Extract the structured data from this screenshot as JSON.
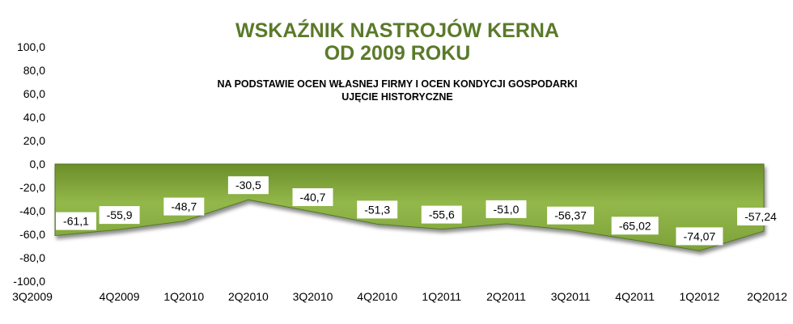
{
  "chart_data": {
    "type": "area",
    "title": [
      "WSKAŹNIK NASTROJÓW KERNA",
      "OD 2009 ROKU"
    ],
    "subtitle": [
      "NA PODSTAWIE OCEN WŁASNEJ FIRMY I OCEN KONDYCJI GOSPODARKI",
      "UJĘCIE HISTORYCZNE"
    ],
    "categories": [
      "3Q2009",
      "4Q2009",
      "1Q2010",
      "2Q2010",
      "3Q2010",
      "4Q2010",
      "1Q2011",
      "2Q2011",
      "3Q2011",
      "4Q2011",
      "1Q2012",
      "2Q2012"
    ],
    "values": [
      -61.1,
      -55.9,
      -48.7,
      -30.5,
      -40.7,
      -51.3,
      -55.6,
      -51.0,
      -56.37,
      -65.02,
      -74.07,
      -57.24
    ],
    "data_labels": [
      "-61,1",
      "-55,9",
      "-48,7",
      "-30,5",
      "-40,7",
      "-51,3",
      "-55,6",
      "-51,0",
      "-56,37",
      "-65,02",
      "-74,07",
      "-57,24"
    ],
    "y_ticks": [
      "100,0",
      "80,0",
      "60,0",
      "40,0",
      "20,0",
      "0,0",
      "-20,0",
      "-40,0",
      "-60,0",
      "-80,0",
      "-100,0"
    ],
    "ylim": [
      -100,
      100
    ],
    "xlabel": "",
    "ylabel": "",
    "grid": false,
    "legend": "none",
    "colors": {
      "fill_top": "#6b8e2a",
      "fill_mid": "#93b84a",
      "fill_bottom": "#7da13a",
      "title": "#5a7a2a"
    }
  }
}
